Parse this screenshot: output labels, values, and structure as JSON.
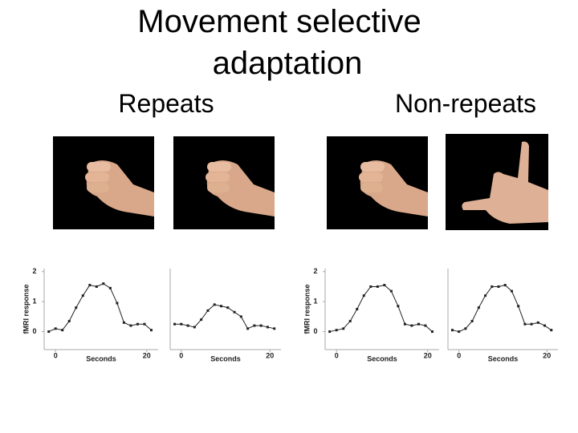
{
  "title": [
    "Movement selective",
    "adaptation"
  ],
  "columns": [
    "Repeats",
    "Non-repeats"
  ],
  "charts": [
    {
      "type": "line",
      "ylabel": "fMRI response",
      "xlabel": "Seconds",
      "x": [
        -1.5,
        0,
        1.5,
        3,
        4.5,
        6,
        7.5,
        9,
        10.5,
        12,
        13.5,
        15,
        16.5,
        18,
        19.5,
        21
      ],
      "values": [
        0.0,
        0.1,
        0.05,
        0.35,
        0.8,
        1.2,
        1.55,
        1.5,
        1.6,
        1.45,
        0.95,
        0.3,
        0.2,
        0.25,
        0.25,
        0.05
      ],
      "xlim": [
        -2.5,
        22.5
      ],
      "ylim": [
        -0.6,
        2.1
      ],
      "xticks": [
        0,
        20
      ],
      "yticks": [
        0,
        1,
        2
      ]
    },
    {
      "type": "line",
      "xlabel": "Seconds",
      "x": [
        -1.5,
        0,
        1.5,
        3,
        4.5,
        6,
        7.5,
        9,
        10.5,
        12,
        13.5,
        15,
        16.5,
        18,
        19.5,
        21
      ],
      "values": [
        0.25,
        0.25,
        0.2,
        0.15,
        0.4,
        0.7,
        0.9,
        0.85,
        0.8,
        0.65,
        0.5,
        0.1,
        0.2,
        0.2,
        0.15,
        0.1
      ],
      "xlim": [
        -2.5,
        22.5
      ],
      "ylim": [
        -0.6,
        2.1
      ],
      "xticks": [
        0,
        20
      ]
    },
    {
      "type": "line",
      "ylabel": "fMRI response",
      "xlabel": "Seconds",
      "x": [
        -1.5,
        0,
        1.5,
        3,
        4.5,
        6,
        7.5,
        9,
        10.5,
        12,
        13.5,
        15,
        16.5,
        18,
        19.5,
        21
      ],
      "values": [
        0.0,
        0.05,
        0.1,
        0.35,
        0.75,
        1.2,
        1.5,
        1.5,
        1.55,
        1.35,
        0.85,
        0.25,
        0.2,
        0.25,
        0.2,
        0.0
      ],
      "xlim": [
        -2.5,
        22.5
      ],
      "ylim": [
        -0.6,
        2.1
      ],
      "xticks": [
        0,
        20
      ],
      "yticks": [
        0,
        1,
        2
      ]
    },
    {
      "type": "line",
      "xlabel": "Seconds",
      "x": [
        -1.5,
        0,
        1.5,
        3,
        4.5,
        6,
        7.5,
        9,
        10.5,
        12,
        13.5,
        15,
        16.5,
        18,
        19.5,
        21
      ],
      "values": [
        0.05,
        0.0,
        0.1,
        0.35,
        0.8,
        1.2,
        1.5,
        1.5,
        1.55,
        1.35,
        0.85,
        0.25,
        0.25,
        0.3,
        0.2,
        0.05
      ],
      "xlim": [
        -2.5,
        22.5
      ],
      "ylim": [
        -0.6,
        2.1
      ],
      "xticks": [
        0,
        20
      ]
    }
  ]
}
